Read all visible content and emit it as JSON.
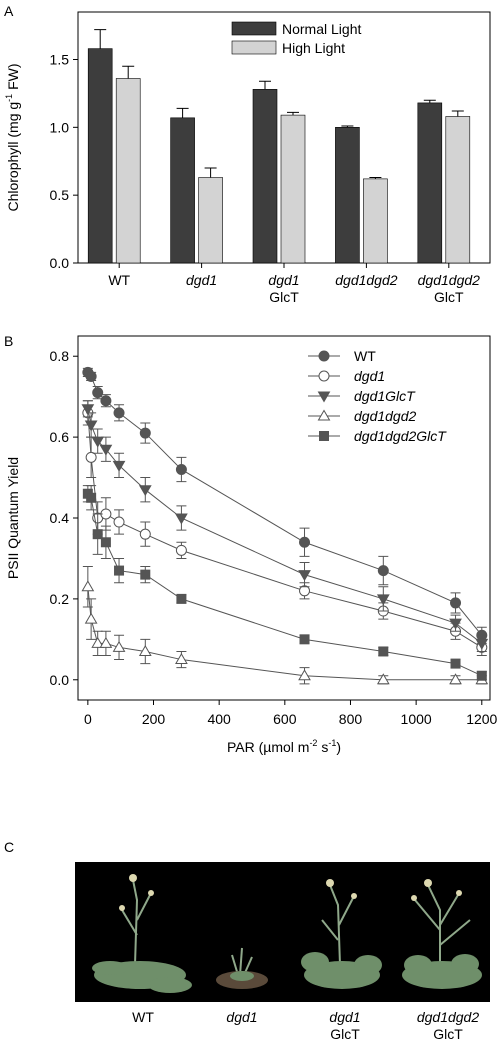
{
  "chart_data": [
    {
      "type": "bar",
      "panel_label": "A",
      "y_label": [
        "Chlorophyll (mg g",
        "-1",
        " FW)"
      ],
      "categories": [
        [
          "WT"
        ],
        [
          "dgd1"
        ],
        [
          "dgd1",
          "GlcT"
        ],
        [
          "dgd1dgd2"
        ],
        [
          "dgd1dgd2",
          "GlcT"
        ]
      ],
      "series": [
        {
          "name": "Normal Light",
          "color": "#3d3d3d",
          "values": [
            1.58,
            1.07,
            1.28,
            1.0,
            1.18
          ],
          "errors": [
            0.14,
            0.07,
            0.06,
            0.01,
            0.02
          ]
        },
        {
          "name": "High Light",
          "color": "#d3d3d3",
          "values": [
            1.36,
            0.63,
            1.09,
            0.62,
            1.08
          ],
          "errors": [
            0.09,
            0.07,
            0.02,
            0.01,
            0.04
          ]
        }
      ],
      "ylim": [
        0,
        1.85
      ],
      "yticks": [
        {
          "value": 0,
          "label": "0.0"
        },
        0.5,
        {
          "value": 1,
          "label": "1.0"
        },
        1.5
      ]
    },
    {
      "type": "line",
      "panel_label": "B",
      "y_label": [
        "PSII Quantum Yield"
      ],
      "x_label": [
        "PAR (µmol m",
        "-2",
        " s",
        "-1",
        ")"
      ],
      "x": [
        0,
        10,
        30,
        55,
        95,
        175,
        285,
        660,
        900,
        1120,
        1200
      ],
      "series": [
        {
          "name": "WT",
          "color": "#555555",
          "fill": "#555555",
          "marker": "circle",
          "values": [
            0.76,
            0.75,
            0.71,
            0.69,
            0.66,
            0.61,
            0.52,
            0.34,
            0.27,
            0.19,
            0.11
          ],
          "errors": [
            0.01,
            0.01,
            0.015,
            0.015,
            0.02,
            0.025,
            0.03,
            0.035,
            0.035,
            0.025,
            0.02
          ]
        },
        {
          "name": "dgd1",
          "color": "#555555",
          "fill": "#ffffff",
          "marker": "circle",
          "values": [
            0.66,
            0.55,
            0.4,
            0.41,
            0.39,
            0.36,
            0.32,
            0.22,
            0.17,
            0.12,
            0.08
          ],
          "errors": [
            0.03,
            0.05,
            0.04,
            0.04,
            0.03,
            0.03,
            0.02,
            0.02,
            0.02,
            0.02,
            0.02
          ]
        },
        {
          "name": "dgd1GlcT",
          "color": "#555555",
          "fill": "#555555",
          "marker": "triangle-down",
          "values": [
            0.67,
            0.63,
            0.59,
            0.57,
            0.53,
            0.47,
            0.4,
            0.26,
            0.2,
            0.14,
            0.09
          ],
          "errors": [
            0.02,
            0.03,
            0.03,
            0.03,
            0.03,
            0.03,
            0.03,
            0.03,
            0.03,
            0.02,
            0.02
          ]
        },
        {
          "name": "dgd1dgd2",
          "color": "#555555",
          "fill": "#ffffff",
          "marker": "triangle-up",
          "values": [
            0.23,
            0.15,
            0.09,
            0.09,
            0.08,
            0.07,
            0.05,
            0.01,
            0.0,
            0.0,
            0.0
          ],
          "errors": [
            0.05,
            0.05,
            0.03,
            0.03,
            0.03,
            0.03,
            0.02,
            0.02,
            0.01,
            0.01,
            0.01
          ]
        },
        {
          "name": "dgd1dgd2GlcT",
          "color": "#555555",
          "fill": "#555555",
          "marker": "square",
          "values": [
            0.46,
            0.45,
            0.36,
            0.34,
            0.27,
            0.26,
            0.2,
            0.1,
            0.07,
            0.04,
            0.01
          ],
          "errors": [
            0.02,
            0.03,
            0.05,
            0.04,
            0.03,
            0.02,
            0.01,
            0.01,
            0.01,
            0.01,
            0.01
          ]
        }
      ],
      "xlim": [
        -30,
        1225
      ],
      "ylim": [
        -0.05,
        0.85
      ],
      "xticks": [
        0,
        200,
        400,
        600,
        800,
        1000,
        1200
      ],
      "yticks": [
        {
          "value": 0,
          "label": "0.0"
        },
        0.2,
        0.4,
        0.6,
        0.8
      ]
    }
  ],
  "photo": {
    "panel_label": "C",
    "captions": [
      [
        "WT"
      ],
      [
        "dgd1"
      ],
      [
        "dgd1",
        "GlcT"
      ],
      [
        "dgd1dgd2",
        "GlcT"
      ]
    ]
  }
}
